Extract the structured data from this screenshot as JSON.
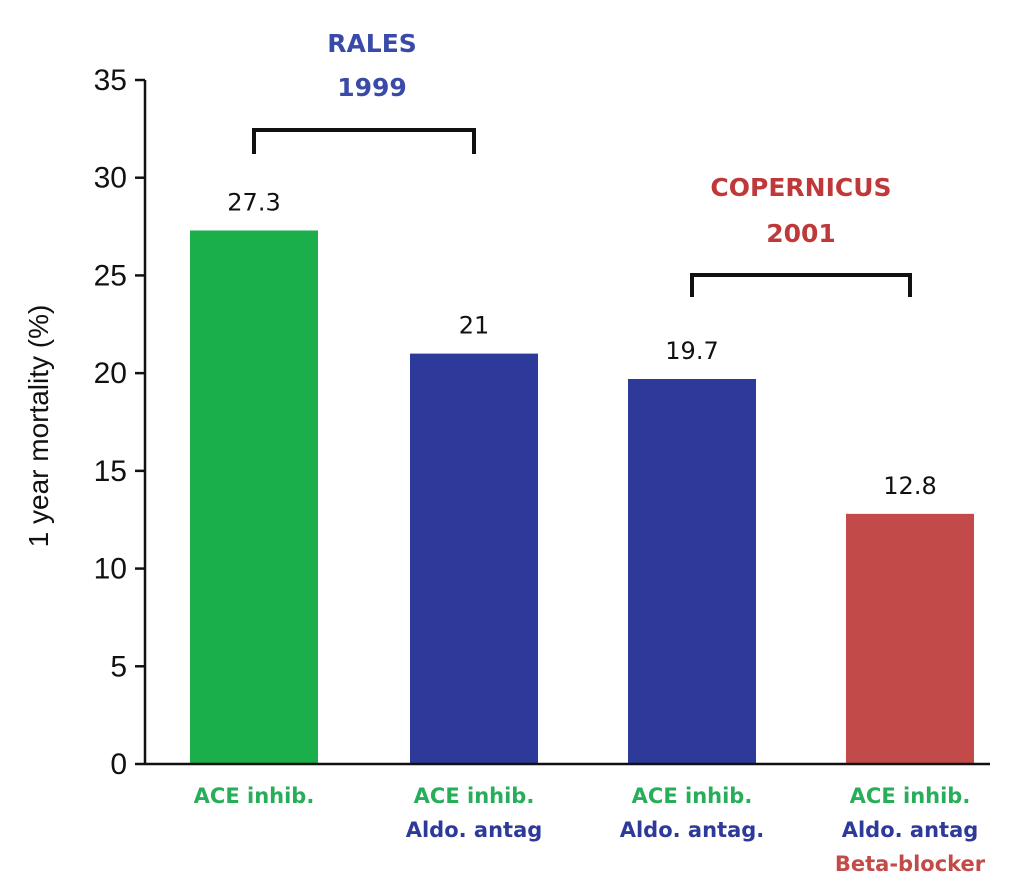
{
  "chart_data": {
    "type": "bar",
    "ylabel": "1 year mortality (%)",
    "xlabel": "",
    "ylim": [
      0,
      35
    ],
    "yticks": [
      0,
      5,
      10,
      15,
      20,
      25,
      30,
      35
    ],
    "grid": false,
    "values": [
      27.3,
      21,
      19.7,
      12.8
    ],
    "data_labels": [
      "27.3",
      "21",
      "19.7",
      "12.8"
    ],
    "bar_colors": [
      "#1aaf4b",
      "#2d3a9a",
      "#2d3a9a",
      "#c24a48"
    ],
    "categories": [
      [
        {
          "text": "ACE inhib.",
          "color": "#27ae5a"
        }
      ],
      [
        {
          "text": "ACE inhib.",
          "color": "#27ae5a"
        },
        {
          "text": "Aldo. antag",
          "color": "#2d3a9a"
        }
      ],
      [
        {
          "text": "ACE inhib.",
          "color": "#27ae5a"
        },
        {
          "text": "Aldo. antag.",
          "color": "#2d3a9a"
        }
      ],
      [
        {
          "text": "ACE inhib.",
          "color": "#27ae5a"
        },
        {
          "text": "Aldo. antag",
          "color": "#2d3a9a"
        },
        {
          "text": "Beta-blocker",
          "color": "#c24a48"
        }
      ]
    ],
    "annotations": [
      {
        "lines": [
          "RALES",
          "1999"
        ],
        "color": "#3a4aa8",
        "spans_bars": [
          0,
          1
        ]
      },
      {
        "lines": [
          "COPERNICUS",
          "2001"
        ],
        "color": "#c0393a",
        "spans_bars": [
          2,
          3
        ]
      }
    ]
  }
}
